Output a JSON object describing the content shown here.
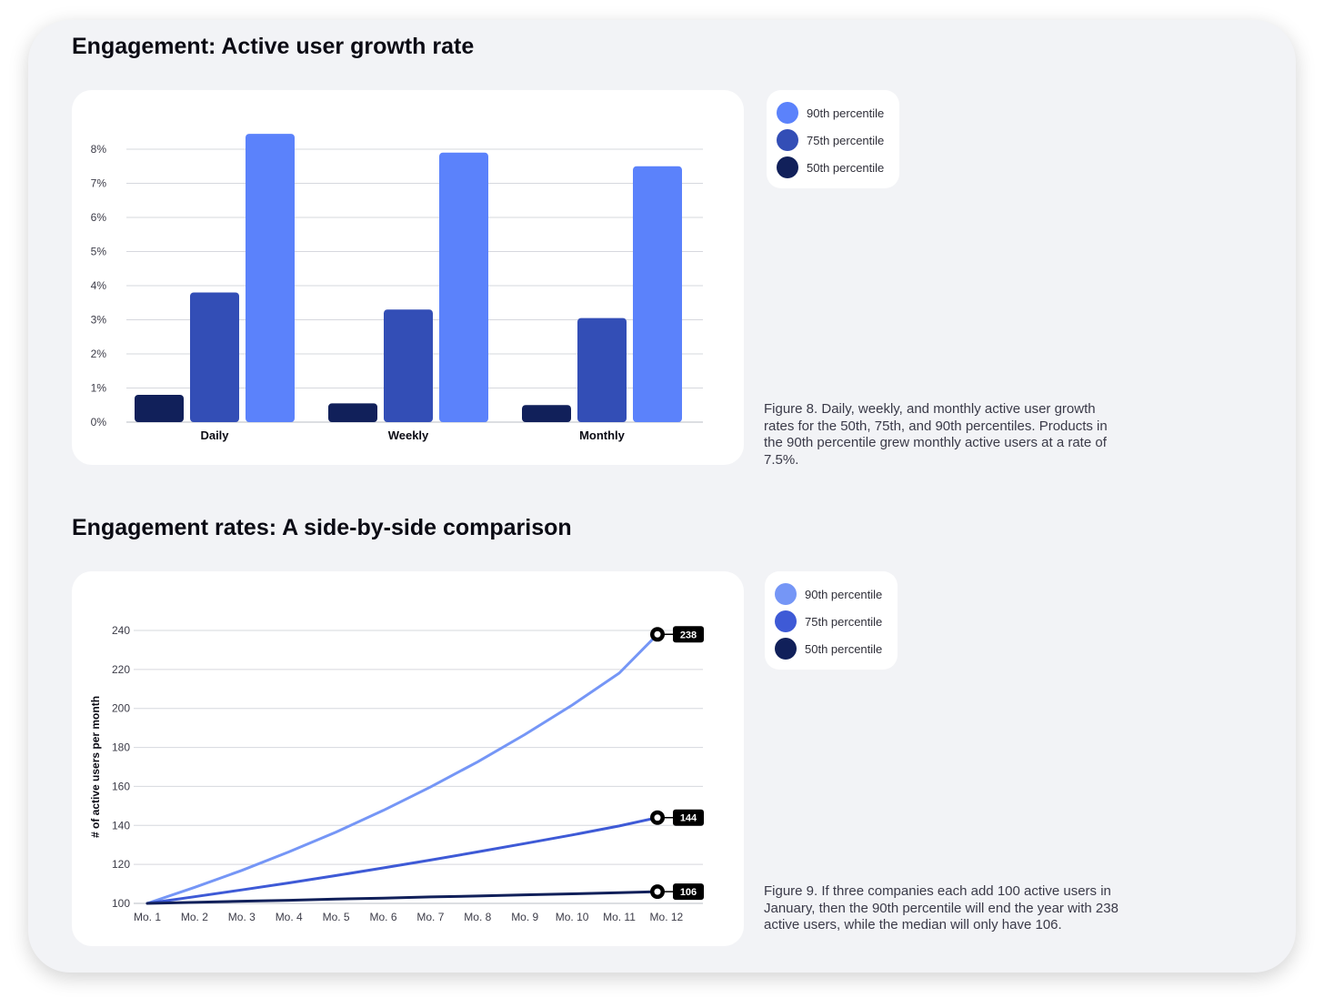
{
  "section1": {
    "title": "Engagement: Active user growth rate",
    "legend": [
      {
        "label": "90th percentile",
        "color": "#5b82fb"
      },
      {
        "label": "75th percentile",
        "color": "#334eb6"
      },
      {
        "label": "50th percentile",
        "color": "#11205a"
      }
    ],
    "caption": "Figure 8. Daily, weekly, and monthly active user growth rates for the 50th, 75th, and 90th percentiles. Products in the 90th percentile grew monthly active users at a rate of 7.5%."
  },
  "section2": {
    "title": "Engagement rates: A side-by-side comparison",
    "legend": [
      {
        "label": "90th percentile",
        "color": "#7596f6"
      },
      {
        "label": "75th percentile",
        "color": "#3e5ad6"
      },
      {
        "label": "50th percentile",
        "color": "#11205a"
      }
    ],
    "caption": "Figure 9. If three companies each add 100 active users in January, then the 90th percentile will end the year with 238 active users, while the median will only have 106."
  },
  "chart_data": [
    {
      "type": "bar",
      "categories": [
        "Daily",
        "Weekly",
        "Monthly"
      ],
      "series": [
        {
          "name": "50th percentile",
          "color": "#11205a",
          "values": [
            0.8,
            0.55,
            0.5
          ]
        },
        {
          "name": "75th percentile",
          "color": "#334eb6",
          "values": [
            3.8,
            3.3,
            3.05
          ]
        },
        {
          "name": "90th percentile",
          "color": "#5b82fb",
          "values": [
            8.45,
            7.9,
            7.5
          ]
        }
      ],
      "yticks": [
        "0%",
        "1%",
        "2%",
        "3%",
        "4%",
        "5%",
        "6%",
        "7%",
        "8%"
      ],
      "ylim": [
        0,
        8
      ],
      "grid": true
    },
    {
      "type": "line",
      "x": [
        "Mo. 1",
        "Mo. 2",
        "Mo. 3",
        "Mo. 4",
        "Mo. 5",
        "Mo. 6",
        "Mo. 7",
        "Mo. 8",
        "Mo. 9",
        "Mo. 10",
        "Mo. 11",
        "Mo. 12"
      ],
      "ylabel": "# of active users per month",
      "ylim": [
        100,
        240
      ],
      "yticks": [
        100,
        120,
        140,
        160,
        180,
        200,
        220,
        240
      ],
      "series": [
        {
          "name": "90th percentile",
          "color": "#7596f6",
          "end_label": "238",
          "values": [
            100,
            108.2,
            116.9,
            126.4,
            136.6,
            147.7,
            159.7,
            172.6,
            186.6,
            201.7,
            218.1,
            238
          ]
        },
        {
          "name": "75th percentile",
          "color": "#3e5ad6",
          "end_label": "144",
          "values": [
            100,
            103.4,
            106.9,
            110.5,
            114.3,
            118.2,
            122.2,
            126.4,
            130.7,
            135.1,
            139.7,
            144
          ]
        },
        {
          "name": "50th percentile",
          "color": "#11205a",
          "end_label": "106",
          "values": [
            100,
            100.5,
            101.1,
            101.6,
            102.2,
            102.7,
            103.3,
            103.8,
            104.4,
            104.9,
            105.5,
            106
          ]
        }
      ],
      "grid": true
    }
  ]
}
